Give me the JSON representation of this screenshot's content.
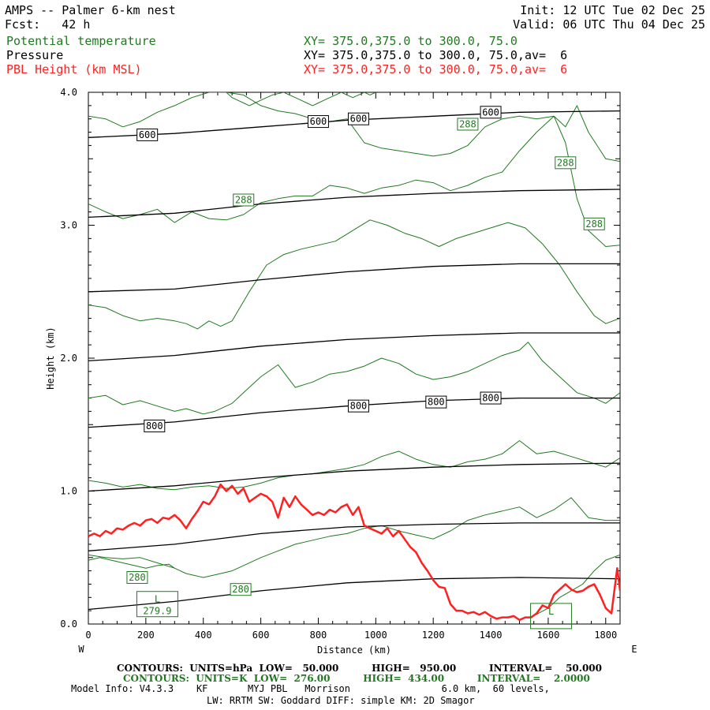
{
  "header": {
    "title": "AMPS -- Palmer 6-km nest",
    "init": "Init: 12 UTC Tue 02 Dec 25",
    "fcst": "Fcst:   42 h",
    "valid": "Valid: 06 UTC Thu 04 Dec 25",
    "fields": [
      {
        "name": "Potential temperature",
        "xy": "XY= 375.0,375.0 to 300.0, 75.0",
        "color": "#1f7a1f"
      },
      {
        "name": "Pressure",
        "xy": "XY= 375.0,375.0 to 300.0, 75.0,av=  6",
        "color": "#000000"
      },
      {
        "name": "PBL Height (km MSL)",
        "xy": "XY= 375.0,375.0 to 300.0, 75.0,av=  6",
        "color": "#ff2020"
      }
    ]
  },
  "footer": {
    "line1": "CONTOURS:  UNITS=hPa  LOW=   50.000          HIGH=   950.00          INTERVAL=    50.000",
    "line2": "CONTOURS:  UNITS=K  LOW=  276.00          HIGH=  434.00          INTERVAL=    2.0000",
    "line3": "Model Info: V4.3.3    KF       MYJ PBL   Morrison                6.0 km,  60 levels,",
    "line4": "LW: RRTM SW: Goddard DIFF: simple KM: 2D Smagor"
  },
  "chart_data": {
    "type": "line",
    "xlabel": "Distance (km)",
    "ylabel": "Height (km)",
    "xlim": [
      0,
      1850
    ],
    "ylim": [
      0,
      4.0
    ],
    "x_ticks": [
      0,
      200,
      400,
      600,
      800,
      1000,
      1200,
      1400,
      1600,
      1800
    ],
    "y_ticks": [
      "0.0",
      "1.0",
      "2.0",
      "3.0",
      "4.0"
    ],
    "x_end_labels": {
      "left": "W",
      "right": "E"
    },
    "colors": {
      "pressure": "#000000",
      "theta": "#1f7a1f",
      "pbl": "#ff2020"
    },
    "pressure_contours": [
      {
        "x": [
          0,
          300,
          600,
          900,
          1200,
          1500,
          1850
        ],
        "y": [
          0.11,
          0.17,
          0.25,
          0.31,
          0.34,
          0.35,
          0.34
        ]
      },
      {
        "x": [
          0,
          300,
          600,
          900,
          1200,
          1500,
          1850
        ],
        "y": [
          0.55,
          0.6,
          0.68,
          0.73,
          0.75,
          0.76,
          0.76
        ]
      },
      {
        "x": [
          0,
          300,
          600,
          900,
          1200,
          1500,
          1850
        ],
        "y": [
          1.0,
          1.04,
          1.1,
          1.15,
          1.18,
          1.2,
          1.21
        ]
      },
      {
        "x": [
          0,
          300,
          600,
          900,
          1200,
          1500,
          1850
        ],
        "y": [
          1.48,
          1.52,
          1.59,
          1.64,
          1.68,
          1.7,
          1.7
        ]
      },
      {
        "x": [
          0,
          300,
          600,
          900,
          1200,
          1500,
          1850
        ],
        "y": [
          1.98,
          2.02,
          2.09,
          2.14,
          2.17,
          2.19,
          2.19
        ]
      },
      {
        "x": [
          0,
          300,
          600,
          900,
          1200,
          1500,
          1850
        ],
        "y": [
          2.5,
          2.52,
          2.59,
          2.65,
          2.69,
          2.71,
          2.71
        ]
      },
      {
        "x": [
          0,
          300,
          600,
          900,
          1200,
          1500,
          1850
        ],
        "y": [
          3.06,
          3.09,
          3.16,
          3.21,
          3.24,
          3.26,
          3.27
        ]
      },
      {
        "x": [
          0,
          300,
          600,
          900,
          1200,
          1500,
          1850
        ],
        "y": [
          3.66,
          3.69,
          3.74,
          3.79,
          3.82,
          3.85,
          3.86
        ]
      }
    ],
    "pressure_labels": [
      {
        "text": "600",
        "x": 205,
        "y": 3.68
      },
      {
        "text": "600",
        "x": 800,
        "y": 3.78
      },
      {
        "text": "600",
        "x": 940,
        "y": 3.8
      },
      {
        "text": "600",
        "x": 1400,
        "y": 3.85
      },
      {
        "text": "800",
        "x": 230,
        "y": 1.49
      },
      {
        "text": "800",
        "x": 940,
        "y": 1.64
      },
      {
        "text": "800",
        "x": 1210,
        "y": 1.67
      },
      {
        "text": "800",
        "x": 1400,
        "y": 1.7
      }
    ],
    "theta_contours": [
      {
        "x": [
          0,
          60,
          120,
          180,
          240,
          300,
          340,
          400,
          440,
          500,
          540,
          600,
          660,
          720,
          780,
          840,
          900,
          960,
          1020,
          1080,
          1140,
          1200,
          1260,
          1320,
          1380,
          1440,
          1500,
          1560,
          1620,
          1680,
          1740,
          1800,
          1850
        ],
        "y": [
          0.52,
          0.5,
          0.49,
          0.5,
          0.46,
          0.42,
          0.38,
          0.35,
          0.37,
          0.4,
          0.44,
          0.5,
          0.55,
          0.6,
          0.63,
          0.66,
          0.68,
          0.72,
          0.74,
          0.7,
          0.67,
          0.64,
          0.7,
          0.78,
          0.82,
          0.85,
          0.88,
          0.8,
          0.86,
          0.95,
          0.8,
          0.78,
          0.78
        ]
      },
      {
        "x": [
          0,
          60,
          120,
          180,
          240,
          300,
          360,
          420,
          480,
          540,
          600,
          660,
          720,
          780,
          840,
          900,
          960,
          1020,
          1080,
          1140,
          1200,
          1260,
          1320,
          1380,
          1440,
          1500,
          1560,
          1620,
          1680,
          1740,
          1800,
          1850
        ],
        "y": [
          1.08,
          1.06,
          1.03,
          1.05,
          1.02,
          1.01,
          1.03,
          1.04,
          1.02,
          1.03,
          1.06,
          1.1,
          1.12,
          1.13,
          1.15,
          1.17,
          1.2,
          1.26,
          1.3,
          1.24,
          1.2,
          1.18,
          1.22,
          1.24,
          1.28,
          1.38,
          1.28,
          1.3,
          1.26,
          1.22,
          1.18,
          1.25
        ]
      },
      {
        "x": [
          0,
          60,
          120,
          180,
          240,
          300,
          340,
          400,
          440,
          500,
          540,
          600,
          660,
          720,
          780,
          840,
          900,
          960,
          1020,
          1080,
          1140,
          1200,
          1260,
          1320,
          1380,
          1440,
          1500,
          1530,
          1580,
          1640,
          1700,
          1760,
          1800,
          1850
        ],
        "y": [
          1.7,
          1.72,
          1.65,
          1.68,
          1.64,
          1.6,
          1.62,
          1.58,
          1.6,
          1.66,
          1.74,
          1.86,
          1.95,
          1.78,
          1.82,
          1.88,
          1.9,
          1.94,
          2.0,
          1.96,
          1.88,
          1.84,
          1.86,
          1.9,
          1.96,
          2.02,
          2.06,
          2.12,
          1.98,
          1.86,
          1.74,
          1.7,
          1.66,
          1.74
        ]
      },
      {
        "x": [
          0,
          60,
          120,
          180,
          240,
          300,
          340,
          380,
          420,
          460,
          500,
          560,
          620,
          680,
          740,
          800,
          860,
          920,
          980,
          1040,
          1100,
          1160,
          1220,
          1280,
          1340,
          1400,
          1460,
          1520,
          1580,
          1640,
          1700,
          1760,
          1800,
          1850
        ],
        "y": [
          2.4,
          2.38,
          2.32,
          2.28,
          2.3,
          2.28,
          2.26,
          2.22,
          2.28,
          2.24,
          2.28,
          2.5,
          2.7,
          2.78,
          2.82,
          2.85,
          2.88,
          2.96,
          3.04,
          3.0,
          2.94,
          2.9,
          2.84,
          2.9,
          2.94,
          2.98,
          3.02,
          2.98,
          2.86,
          2.7,
          2.5,
          2.32,
          2.26,
          2.3
        ]
      },
      {
        "x": [
          0,
          60,
          120,
          180,
          240,
          300,
          360,
          420,
          480,
          540,
          600,
          660,
          720,
          780,
          840,
          900,
          960,
          1020,
          1080,
          1140,
          1200,
          1260,
          1320,
          1380,
          1440,
          1500,
          1560,
          1620,
          1660,
          1700,
          1740,
          1800,
          1850
        ],
        "y": [
          3.16,
          3.1,
          3.05,
          3.08,
          3.12,
          3.02,
          3.1,
          3.05,
          3.04,
          3.08,
          3.17,
          3.2,
          3.22,
          3.22,
          3.3,
          3.28,
          3.24,
          3.28,
          3.3,
          3.34,
          3.32,
          3.26,
          3.3,
          3.36,
          3.4,
          3.56,
          3.7,
          3.82,
          3.62,
          3.2,
          2.96,
          2.84,
          2.85
        ]
      },
      {
        "x": [
          0,
          60,
          120,
          180,
          240,
          300,
          360,
          420,
          480,
          540,
          600,
          660,
          720,
          780,
          840,
          900,
          960,
          1020,
          1080,
          1140,
          1200,
          1260,
          1320,
          1380,
          1440,
          1500,
          1560,
          1620,
          1660,
          1700,
          1740,
          1800,
          1850
        ],
        "y": [
          3.82,
          3.8,
          3.74,
          3.78,
          3.85,
          3.9,
          3.96,
          4.0,
          4.0,
          3.98,
          3.9,
          3.86,
          3.84,
          3.8,
          3.78,
          3.8,
          3.62,
          3.58,
          3.56,
          3.54,
          3.52,
          3.54,
          3.6,
          3.74,
          3.8,
          3.82,
          3.8,
          3.82,
          3.74,
          3.9,
          3.7,
          3.5,
          3.48
        ]
      },
      {
        "x": [
          480,
          500,
          520,
          540,
          560,
          580,
          600,
          620,
          640,
          660,
          680,
          700,
          720,
          740,
          760,
          780,
          800,
          820,
          840,
          860,
          880,
          900,
          920,
          940,
          960,
          980,
          1000
        ],
        "y": [
          4.0,
          3.96,
          3.94,
          3.92,
          3.9,
          3.92,
          3.94,
          3.96,
          3.98,
          3.99,
          4.0,
          3.98,
          3.96,
          3.94,
          3.92,
          3.9,
          3.92,
          3.94,
          3.96,
          3.98,
          4.0,
          3.98,
          3.96,
          3.98,
          4.0,
          3.98,
          4.0
        ]
      },
      {
        "x": [
          0,
          40,
          80,
          120,
          160,
          200,
          240,
          280,
          300
        ],
        "y": [
          0.48,
          0.5,
          0.48,
          0.46,
          0.44,
          0.42,
          0.44,
          0.45,
          0.42
        ]
      },
      {
        "x": [
          1540,
          1600,
          1640,
          1680,
          1720,
          1760,
          1800,
          1850
        ],
        "y": [
          0.05,
          0.12,
          0.2,
          0.25,
          0.3,
          0.4,
          0.48,
          0.52
        ]
      }
    ],
    "theta_labels": [
      {
        "text": "288",
        "x": 540,
        "y": 3.19
      },
      {
        "text": "288",
        "x": 1320,
        "y": 3.76
      },
      {
        "text": "288",
        "x": 1660,
        "y": 3.47
      },
      {
        "text": "288",
        "x": 1760,
        "y": 3.01
      },
      {
        "text": "280",
        "x": 170,
        "y": 0.35
      },
      {
        "text": "280",
        "x": 530,
        "y": 0.26
      }
    ],
    "lows": [
      {
        "label": "L",
        "value": "279.9",
        "x": 240,
        "y": 0.15
      },
      {
        "label": "L",
        "value": "",
        "x": 1610,
        "y": 0.06
      }
    ],
    "pbl": {
      "x": [
        0,
        20,
        40,
        60,
        80,
        100,
        120,
        140,
        160,
        180,
        200,
        220,
        240,
        260,
        280,
        300,
        320,
        340,
        360,
        380,
        400,
        420,
        440,
        460,
        480,
        500,
        520,
        540,
        560,
        580,
        600,
        620,
        640,
        660,
        680,
        700,
        720,
        740,
        760,
        780,
        800,
        820,
        840,
        860,
        880,
        900,
        920,
        940,
        960,
        980,
        1000,
        1020,
        1040,
        1060,
        1080,
        1100,
        1120,
        1140,
        1160,
        1180,
        1200,
        1220,
        1240,
        1260,
        1280,
        1300,
        1320,
        1340,
        1360,
        1380,
        1400,
        1420,
        1440,
        1460,
        1480,
        1500,
        1520,
        1540,
        1560,
        1580,
        1600,
        1620,
        1640,
        1660,
        1680,
        1700,
        1720,
        1740,
        1760,
        1780,
        1800,
        1820,
        1840,
        1850
      ],
      "y": [
        0.66,
        0.68,
        0.66,
        0.7,
        0.68,
        0.72,
        0.71,
        0.74,
        0.76,
        0.74,
        0.78,
        0.79,
        0.76,
        0.8,
        0.79,
        0.82,
        0.78,
        0.72,
        0.79,
        0.85,
        0.92,
        0.9,
        0.96,
        1.05,
        1.0,
        1.04,
        0.98,
        1.02,
        0.92,
        0.95,
        0.98,
        0.96,
        0.92,
        0.8,
        0.95,
        0.88,
        0.96,
        0.9,
        0.86,
        0.82,
        0.84,
        0.82,
        0.86,
        0.84,
        0.88,
        0.9,
        0.82,
        0.88,
        0.74,
        0.72,
        0.7,
        0.68,
        0.72,
        0.66,
        0.7,
        0.64,
        0.58,
        0.54,
        0.46,
        0.4,
        0.33,
        0.28,
        0.27,
        0.15,
        0.1,
        0.1,
        0.08,
        0.09,
        0.07,
        0.09,
        0.06,
        0.04,
        0.05,
        0.05,
        0.06,
        0.03,
        0.05,
        0.05,
        0.08,
        0.14,
        0.12,
        0.22,
        0.26,
        0.3,
        0.26,
        0.24,
        0.25,
        0.28,
        0.3,
        0.22,
        0.12,
        0.08,
        0.42,
        0.25
      ]
    }
  }
}
